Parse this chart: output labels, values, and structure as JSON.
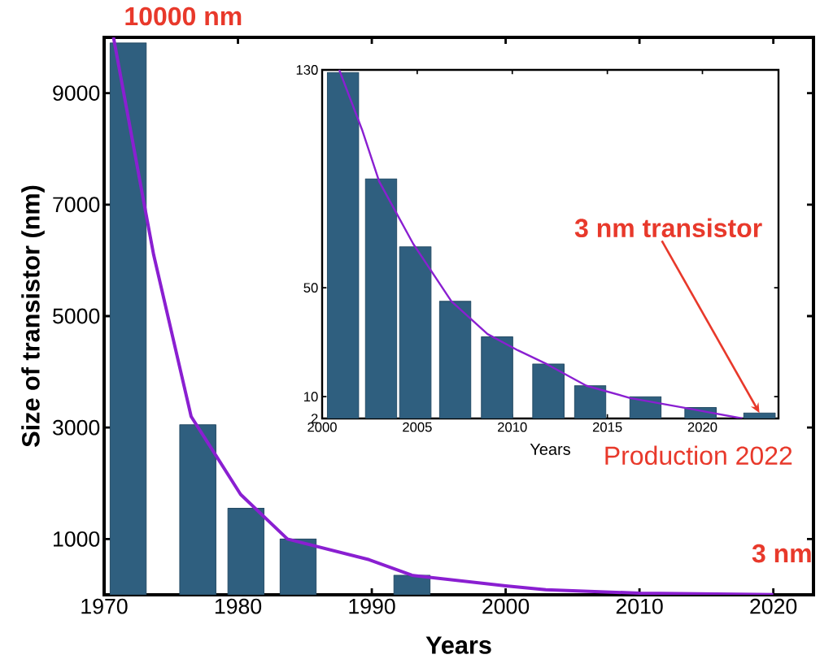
{
  "chart_data": [
    {
      "type": "bar",
      "xlabel": "Years",
      "ylabel": "Size of transistor (nm)",
      "xlim": [
        1970,
        2023
      ],
      "ylim": [
        0,
        10000
      ],
      "xticks": [
        1970,
        1980,
        1990,
        2000,
        2010,
        2020
      ],
      "yticks": [
        1000,
        3000,
        5000,
        7000,
        9000
      ],
      "series": [
        {
          "color": "#2f5f7f",
          "x": [
            1971.8,
            1977,
            1980.6,
            1984.5,
            1993
          ],
          "values": [
            9900,
            3050,
            1550,
            1000,
            350
          ]
        },
        {
          "type": "line",
          "color": "#8a1fd1",
          "x": [
            1970.7,
            1973,
            1973.7,
            1976.5,
            1980.2,
            1983.7,
            1989.8,
            1993,
            2000,
            2003,
            2010,
            2020
          ],
          "values": [
            10000,
            7000,
            6100,
            3200,
            1800,
            1000,
            630,
            350,
            160,
            90,
            30,
            3
          ]
        }
      ],
      "annotations": [
        "10000 nm",
        {
          "text": "3 nm",
          "x": 2020,
          "y": 3
        }
      ]
    },
    {
      "type": "bar",
      "xlabel": "Years",
      "xlim": [
        2000,
        2024
      ],
      "ylim": [
        2,
        130
      ],
      "xticks": [
        2000,
        2005,
        2010,
        2015,
        2020
      ],
      "yticks": [
        2,
        10,
        50,
        130
      ],
      "series": [
        {
          "color": "#2f5f7f",
          "x": [
            2001.1,
            2003.1,
            2004.9,
            2007,
            2009.2,
            2011.9,
            2014.1,
            2017,
            2019.9,
            2023
          ],
          "values": [
            129,
            90,
            65,
            45,
            32,
            22,
            14,
            10,
            6,
            4
          ]
        },
        {
          "type": "line",
          "color": "#8a1fd1",
          "x": [
            2000.9,
            2002.1,
            2003,
            2004.8,
            2006.8,
            2008.7,
            2010.3,
            2011.8,
            2013.9,
            2016.2,
            2019,
            2022.1
          ],
          "values": [
            130,
            108,
            89,
            66,
            45,
            33,
            27,
            22,
            14,
            9.5,
            6,
            2
          ]
        }
      ],
      "annotations": [
        {
          "text": "3 nm transistor",
          "x": 2023,
          "y": 4
        },
        "Production 2022"
      ]
    }
  ]
}
